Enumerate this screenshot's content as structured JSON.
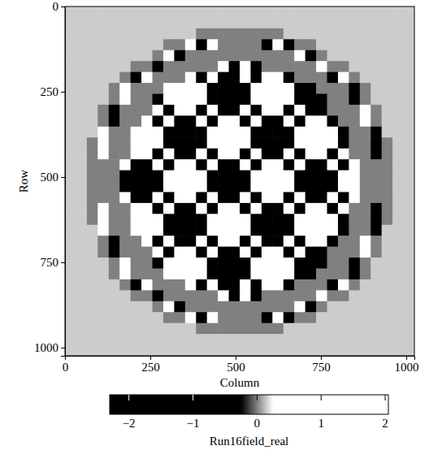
{
  "chart_data": {
    "type": "heatmap",
    "x_label": "Column",
    "y_label": "Row",
    "xlim": [
      0,
      1024
    ],
    "ylim": [
      0,
      1024
    ],
    "xticks": [
      0,
      250,
      500,
      750,
      1000
    ],
    "yticks": [
      0,
      250,
      500,
      750,
      1000
    ],
    "x": [
      16,
      48,
      80,
      112,
      144,
      176,
      208,
      240,
      272,
      304,
      336,
      368,
      400,
      432,
      464,
      496,
      528,
      560,
      592,
      624,
      656,
      688,
      720,
      752,
      784,
      816,
      848,
      880,
      912,
      944,
      976,
      1008
    ],
    "y": [
      16,
      48,
      80,
      112,
      144,
      176,
      208,
      240,
      272,
      304,
      336,
      368,
      400,
      432,
      464,
      496,
      528,
      560,
      592,
      624,
      656,
      688,
      720,
      752,
      784,
      816,
      848,
      880,
      912,
      944,
      976,
      1008
    ],
    "cells": [
      [
        0.15,
        0.15,
        0.15,
        0.15,
        0.15,
        0.15,
        0.15,
        0.15,
        0.15,
        0.15,
        0.15,
        0.15,
        0.15,
        0.15,
        0.15,
        0.15,
        0.15,
        0.15,
        0.15,
        0.15,
        0.15,
        0.15,
        0.15,
        0.15,
        0.15,
        0.15,
        0.15,
        0.15,
        0.15,
        0.15,
        0.15,
        0.15
      ],
      [
        0.15,
        0.15,
        0.15,
        0.15,
        0.15,
        0.15,
        0.15,
        0.15,
        0.15,
        0.15,
        0.15,
        0.15,
        0.15,
        0.15,
        0.15,
        0.15,
        0.15,
        0.15,
        0.15,
        0.15,
        0.15,
        0.15,
        0.15,
        0.15,
        0.15,
        0.15,
        0.15,
        0.15,
        0.15,
        0.15,
        0.15,
        0.15
      ],
      [
        0.15,
        0.15,
        0.15,
        0.15,
        0.15,
        0.15,
        0.15,
        0.15,
        0.15,
        0.15,
        0.15,
        0.15,
        0,
        0,
        0,
        0,
        0,
        0,
        0,
        0,
        0.15,
        0.15,
        0.15,
        0.15,
        0.15,
        0.15,
        0.15,
        0.15,
        0.15,
        0.15,
        0.15,
        0.15
      ],
      [
        0.15,
        0.15,
        0.15,
        0.15,
        0.15,
        0.15,
        0.15,
        0.15,
        0.15,
        0,
        0,
        1,
        -1,
        1,
        0,
        0,
        0,
        0,
        -1,
        1,
        -1,
        0,
        0,
        0.15,
        0.15,
        0.15,
        0.15,
        0.15,
        0.15,
        0.15,
        0.15,
        0.15
      ],
      [
        0.15,
        0.15,
        0.15,
        0.15,
        0.15,
        0.15,
        0.15,
        0.15,
        0,
        1,
        -1,
        0,
        0,
        0,
        0,
        0,
        0,
        0,
        0,
        0,
        0,
        1,
        -1,
        0,
        0.15,
        0.15,
        0.15,
        0.15,
        0.15,
        0.15,
        0.15,
        0.15
      ],
      [
        0.15,
        0.15,
        0.15,
        0.15,
        0.15,
        0.15,
        0,
        0,
        -1,
        0,
        0,
        0,
        0,
        0,
        2,
        -2,
        2,
        -2,
        0,
        0,
        0,
        0,
        0,
        1,
        0,
        0,
        0.15,
        0.15,
        0.15,
        0.15,
        0.15,
        0.15
      ],
      [
        0.15,
        0.15,
        0.15,
        0.15,
        0.15,
        0,
        -1,
        1,
        0,
        0,
        0,
        2,
        -2,
        2,
        -2,
        -2,
        2,
        -2,
        2,
        2,
        -2,
        0,
        0,
        0,
        -1,
        1,
        0,
        0.15,
        0.15,
        0.15,
        0.15,
        0.15
      ],
      [
        0.15,
        0.15,
        0.15,
        0.15,
        0,
        1,
        0,
        0,
        0,
        2,
        2,
        2,
        2,
        -2,
        -2,
        -2,
        -2,
        2,
        2,
        2,
        2,
        -2,
        -2,
        0,
        0,
        0,
        -1,
        0,
        0.15,
        0.15,
        0.15,
        0.15
      ],
      [
        0.15,
        0.15,
        0.15,
        0.15,
        0,
        1,
        0,
        0,
        -2,
        2,
        2,
        2,
        2,
        -2,
        -2,
        -2,
        -2,
        2,
        2,
        2,
        2,
        -2,
        -2,
        -2,
        0,
        0,
        -1,
        0,
        0.15,
        0.15,
        0.15,
        0.15
      ],
      [
        0.15,
        0.15,
        0.15,
        0,
        -1,
        0,
        0,
        0,
        2,
        -2,
        2,
        2,
        -2,
        2,
        -2,
        -2,
        2,
        -2,
        2,
        2,
        -2,
        2,
        -2,
        -2,
        0,
        0,
        0,
        1,
        0,
        0.15,
        0.15,
        0.15
      ],
      [
        0.15,
        0.15,
        0.15,
        0,
        -1,
        0,
        0,
        2,
        -2,
        2,
        -2,
        -2,
        2,
        -2,
        2,
        2,
        -2,
        2,
        -2,
        -2,
        2,
        -2,
        2,
        2,
        -2,
        0,
        0,
        1,
        0,
        0.15,
        0.15,
        0.15
      ],
      [
        0.15,
        0.15,
        0.15,
        1,
        0,
        0,
        2,
        2,
        2,
        -2,
        -2,
        -2,
        -2,
        2,
        2,
        2,
        2,
        -2,
        -2,
        -2,
        -2,
        2,
        2,
        2,
        2,
        -2,
        0,
        0,
        -1,
        0.15,
        0.15,
        0.15
      ],
      [
        0.15,
        0.15,
        0,
        1,
        0,
        0,
        2,
        2,
        2,
        -2,
        -2,
        -2,
        -2,
        2,
        2,
        2,
        2,
        -2,
        -2,
        -2,
        -2,
        2,
        2,
        2,
        2,
        -2,
        0,
        0,
        -1,
        0,
        0.15,
        0.15
      ],
      [
        0.15,
        0.15,
        0,
        1,
        0,
        0,
        2,
        2,
        -2,
        2,
        -2,
        -2,
        2,
        -2,
        2,
        2,
        -2,
        2,
        -2,
        -2,
        2,
        -2,
        2,
        2,
        -2,
        2,
        0,
        0,
        -1,
        0,
        0.15,
        0.15
      ],
      [
        0.15,
        0.15,
        0,
        0,
        0,
        2,
        -2,
        -2,
        2,
        -2,
        2,
        2,
        -2,
        2,
        -2,
        -2,
        2,
        -2,
        2,
        2,
        -2,
        2,
        -2,
        -2,
        2,
        -2,
        2,
        0,
        0,
        0,
        0.15,
        0.15
      ],
      [
        0.15,
        0.15,
        0,
        0,
        0,
        -2,
        -2,
        -2,
        -2,
        2,
        2,
        2,
        2,
        -2,
        -2,
        -2,
        -2,
        2,
        2,
        2,
        2,
        -2,
        -2,
        -2,
        -2,
        2,
        2,
        0,
        0,
        0,
        0.15,
        0.15
      ],
      [
        0.15,
        0.15,
        0,
        0,
        0,
        -2,
        -2,
        -2,
        -2,
        2,
        2,
        2,
        2,
        -2,
        -2,
        -2,
        -2,
        2,
        2,
        2,
        2,
        -2,
        -2,
        -2,
        -2,
        2,
        2,
        0,
        0,
        0,
        0.15,
        0.15
      ],
      [
        0.15,
        0.15,
        0,
        0,
        0,
        2,
        -2,
        -2,
        2,
        -2,
        2,
        2,
        -2,
        2,
        -2,
        -2,
        2,
        -2,
        2,
        2,
        -2,
        2,
        -2,
        -2,
        2,
        -2,
        2,
        0,
        0,
        0,
        0.15,
        0.15
      ],
      [
        0.15,
        0.15,
        0,
        1,
        0,
        0,
        2,
        2,
        -2,
        2,
        -2,
        -2,
        2,
        -2,
        2,
        2,
        -2,
        2,
        -2,
        -2,
        2,
        -2,
        2,
        2,
        -2,
        2,
        0,
        0,
        -1,
        0,
        0.15,
        0.15
      ],
      [
        0.15,
        0.15,
        0,
        1,
        0,
        0,
        2,
        2,
        2,
        -2,
        -2,
        -2,
        -2,
        2,
        2,
        2,
        2,
        -2,
        -2,
        -2,
        -2,
        2,
        2,
        2,
        2,
        -2,
        0,
        0,
        -1,
        0,
        0.15,
        0.15
      ],
      [
        0.15,
        0.15,
        0.15,
        1,
        0,
        0,
        2,
        2,
        2,
        -2,
        -2,
        -2,
        -2,
        2,
        2,
        2,
        2,
        -2,
        -2,
        -2,
        -2,
        2,
        2,
        2,
        2,
        -2,
        0,
        0,
        -1,
        0.15,
        0.15,
        0.15
      ],
      [
        0.15,
        0.15,
        0.15,
        0,
        -1,
        0,
        0,
        2,
        -2,
        2,
        -2,
        -2,
        2,
        -2,
        2,
        2,
        -2,
        2,
        -2,
        -2,
        2,
        -2,
        2,
        2,
        -2,
        0,
        0,
        1,
        0,
        0.15,
        0.15,
        0.15
      ],
      [
        0.15,
        0.15,
        0.15,
        0,
        -1,
        0,
        0,
        0,
        2,
        -2,
        2,
        2,
        -2,
        2,
        -2,
        -2,
        2,
        -2,
        2,
        2,
        -2,
        2,
        -2,
        -2,
        0,
        0,
        0,
        1,
        0,
        0.15,
        0.15,
        0.15
      ],
      [
        0.15,
        0.15,
        0.15,
        0.15,
        0,
        1,
        0,
        0,
        -2,
        2,
        2,
        2,
        2,
        -2,
        -2,
        -2,
        -2,
        2,
        2,
        2,
        2,
        -2,
        -2,
        -2,
        0,
        0,
        -1,
        0,
        0.15,
        0.15,
        0.15,
        0.15
      ],
      [
        0.15,
        0.15,
        0.15,
        0.15,
        0,
        1,
        0,
        0,
        0,
        2,
        2,
        2,
        2,
        -2,
        -2,
        -2,
        -2,
        2,
        2,
        2,
        2,
        -2,
        -2,
        0,
        0,
        0,
        -1,
        0,
        0.15,
        0.15,
        0.15,
        0.15
      ],
      [
        0.15,
        0.15,
        0.15,
        0.15,
        0.15,
        0,
        -1,
        1,
        0,
        0,
        0,
        2,
        -2,
        2,
        -2,
        -2,
        2,
        -2,
        2,
        2,
        -2,
        0,
        0,
        0,
        -1,
        1,
        0,
        0.15,
        0.15,
        0.15,
        0.15,
        0.15
      ],
      [
        0.15,
        0.15,
        0.15,
        0.15,
        0.15,
        0.15,
        0,
        0,
        -1,
        0,
        0,
        0,
        0,
        0,
        2,
        -2,
        2,
        -2,
        0,
        0,
        0,
        0,
        0,
        1,
        0,
        0,
        0.15,
        0.15,
        0.15,
        0.15,
        0.15,
        0.15
      ],
      [
        0.15,
        0.15,
        0.15,
        0.15,
        0.15,
        0.15,
        0.15,
        0.15,
        0,
        1,
        -1,
        0,
        0,
        0,
        0,
        0,
        0,
        0,
        0,
        0,
        0,
        1,
        -1,
        0,
        0.15,
        0.15,
        0.15,
        0.15,
        0.15,
        0.15,
        0.15,
        0.15
      ],
      [
        0.15,
        0.15,
        0.15,
        0.15,
        0.15,
        0.15,
        0.15,
        0.15,
        0.15,
        0,
        0,
        1,
        -1,
        1,
        0,
        0,
        0,
        0,
        -1,
        1,
        -1,
        0,
        0,
        0.15,
        0.15,
        0.15,
        0.15,
        0.15,
        0.15,
        0.15,
        0.15,
        0.15
      ],
      [
        0.15,
        0.15,
        0.15,
        0.15,
        0.15,
        0.15,
        0.15,
        0.15,
        0.15,
        0.15,
        0.15,
        0.15,
        0,
        0,
        0,
        0,
        0,
        0,
        0,
        0,
        0.15,
        0.15,
        0.15,
        0.15,
        0.15,
        0.15,
        0.15,
        0.15,
        0.15,
        0.15,
        0.15,
        0.15
      ],
      [
        0.15,
        0.15,
        0.15,
        0.15,
        0.15,
        0.15,
        0.15,
        0.15,
        0.15,
        0.15,
        0.15,
        0.15,
        0.15,
        0.15,
        0.15,
        0.15,
        0.15,
        0.15,
        0.15,
        0.15,
        0.15,
        0.15,
        0.15,
        0.15,
        0.15,
        0.15,
        0.15,
        0.15,
        0.15,
        0.15,
        0.15,
        0.15
      ],
      [
        0.15,
        0.15,
        0.15,
        0.15,
        0.15,
        0.15,
        0.15,
        0.15,
        0.15,
        0.15,
        0.15,
        0.15,
        0.15,
        0.15,
        0.15,
        0.15,
        0.15,
        0.15,
        0.15,
        0.15,
        0.15,
        0.15,
        0.15,
        0.15,
        0.15,
        0.15,
        0.15,
        0.15,
        0.15,
        0.15,
        0.15,
        0.15
      ]
    ],
    "colorbar": {
      "label": "Run16field_real",
      "range": [
        -2.3,
        2.05
      ],
      "ticks": [
        -2,
        -1,
        0,
        1,
        2
      ]
    }
  }
}
